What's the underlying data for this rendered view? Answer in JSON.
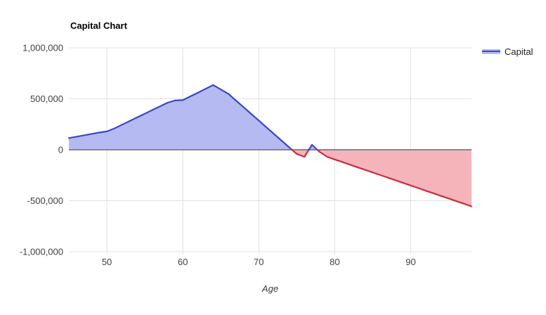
{
  "chart_data": {
    "type": "area",
    "title": "Capital Chart",
    "xlabel": "Age",
    "ylabel": "",
    "legend_position": "right",
    "grid": true,
    "xlim": [
      45,
      98
    ],
    "ylim": [
      -1000000,
      1000000
    ],
    "x": [
      45,
      46,
      47,
      48,
      49,
      50,
      51,
      52,
      53,
      54,
      55,
      56,
      57,
      58,
      59,
      60,
      61,
      62,
      63,
      64,
      65,
      66,
      67,
      68,
      69,
      70,
      71,
      72,
      73,
      74,
      75,
      76,
      77,
      78,
      79,
      80,
      81,
      82,
      83,
      84,
      85,
      86,
      87,
      88,
      89,
      90,
      91,
      92,
      93,
      94,
      95,
      96,
      97,
      98
    ],
    "series": [
      {
        "name": "Capital",
        "values": [
          115000,
          128000,
          142000,
          156000,
          169000,
          180000,
          210000,
          246000,
          282000,
          318000,
          354000,
          390000,
          426000,
          462000,
          484000,
          487000,
          524000,
          561000,
          598000,
          635000,
          592000,
          549000,
          483000,
          418000,
          352000,
          287000,
          221000,
          155000,
          90000,
          24000,
          -41000,
          -69000,
          49000,
          -21000,
          -69000,
          -95000,
          -120000,
          -146000,
          -172000,
          -197000,
          -223000,
          -248000,
          -274000,
          -299000,
          -325000,
          -350000,
          -376000,
          -402000,
          -427000,
          -453000,
          -478000,
          -504000,
          -529000,
          -555000
        ]
      }
    ],
    "xticks": [
      {
        "value": 50,
        "label": "50"
      },
      {
        "value": 60,
        "label": "60"
      },
      {
        "value": 70,
        "label": "70"
      },
      {
        "value": 80,
        "label": "80"
      },
      {
        "value": 90,
        "label": "90"
      }
    ],
    "yticks": [
      {
        "value": 1000000,
        "label": "1,000,000"
      },
      {
        "value": 500000,
        "label": "500,000"
      },
      {
        "value": 0,
        "label": "0"
      },
      {
        "value": -500000,
        "label": "-500,000"
      },
      {
        "value": -1000000,
        "label": "-1,000,000"
      }
    ],
    "colors": {
      "positive_line": "#3a48c2",
      "positive_fill": "#b5bbf2",
      "negative_line": "#cc2b3d",
      "negative_fill": "#f5b3ba",
      "gridline": "#e0e0e0",
      "zero_line": "#868686",
      "tick_text": "#404040",
      "title_text": "#000000"
    }
  }
}
